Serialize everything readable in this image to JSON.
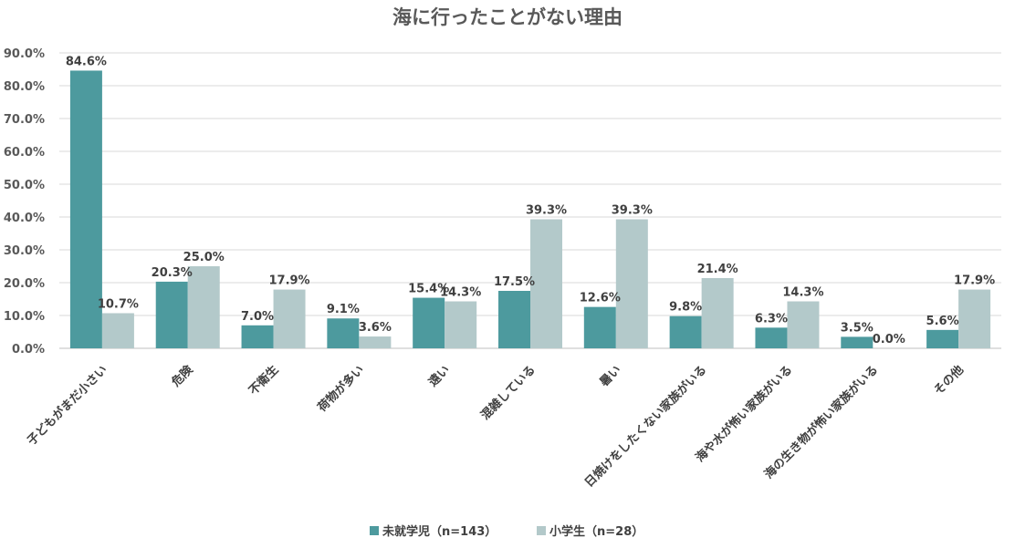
{
  "chart_data": {
    "type": "bar",
    "title": "海に行ったことがない理由",
    "categories": [
      "子どもがまだ小さい",
      "危険",
      "不衛生",
      "荷物が多い",
      "遠い",
      "混雑している",
      "暑い",
      "日焼けをしたくない家族がいる",
      "海や水が怖い家族がいる",
      "海の生き物が怖い家族がいる",
      "その他"
    ],
    "series": [
      {
        "name": "未就学児（n=143）",
        "color": "#4d9a9e",
        "values": [
          84.6,
          20.3,
          7.0,
          9.1,
          15.4,
          17.5,
          12.6,
          9.8,
          6.3,
          3.5,
          5.6
        ],
        "labels": [
          "84.6%",
          "20.3%",
          "7.0%",
          "9.1%",
          "15.4%",
          "17.5%",
          "12.6%",
          "9.8%",
          "6.3%",
          "3.5%",
          "5.6%"
        ]
      },
      {
        "name": "小学生（n=28）",
        "color": "#b3c9ca",
        "values": [
          10.7,
          25.0,
          17.9,
          3.6,
          14.3,
          39.3,
          39.3,
          21.4,
          14.3,
          0.0,
          17.9
        ],
        "labels": [
          "10.7%",
          "25.0%",
          "17.9%",
          "3.6%",
          "14.3%",
          "39.3%",
          "39.3%",
          "21.4%",
          "14.3%",
          "0.0%",
          "17.9%"
        ]
      }
    ],
    "ylim": [
      0,
      90
    ],
    "yticks": [
      0,
      10,
      20,
      30,
      40,
      50,
      60,
      70,
      80,
      90
    ],
    "ytick_labels": [
      "0.0%",
      "10.0%",
      "20.0%",
      "30.0%",
      "40.0%",
      "50.0%",
      "60.0%",
      "70.0%",
      "80.0%",
      "90.0%"
    ],
    "xlabel": "",
    "ylabel": "",
    "grid": true,
    "legend": "bottom"
  }
}
